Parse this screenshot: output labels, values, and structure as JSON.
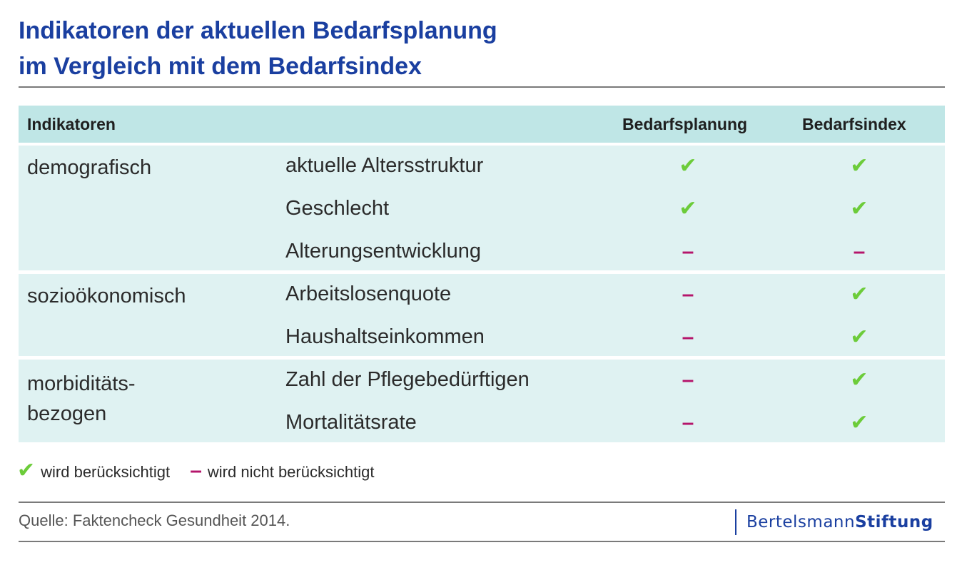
{
  "title": {
    "line1": "Indikatoren der aktuellen Bedarfsplanung",
    "line2": "im Vergleich mit dem Bedarfsindex"
  },
  "table": {
    "headers": {
      "indicators": "Indikatoren",
      "col1": "Bedarfsplanung",
      "col2": "Bedarfsindex"
    },
    "groups": [
      {
        "label_line1": "demografisch",
        "label_line2": "",
        "rows": [
          {
            "label": "aktuelle Altersstruktur",
            "bedarfsplanung": "✔",
            "bedarfsindex": "✔"
          },
          {
            "label": "Geschlecht",
            "bedarfsplanung": "✔",
            "bedarfsindex": "✔"
          },
          {
            "label": "Alterungsentwicklung",
            "bedarfsplanung": "–",
            "bedarfsindex": "–"
          }
        ]
      },
      {
        "label_line1": "sozioökonomisch",
        "label_line2": "",
        "rows": [
          {
            "label": "Arbeitslosenquote",
            "bedarfsplanung": "–",
            "bedarfsindex": "✔"
          },
          {
            "label": "Haushaltseinkommen",
            "bedarfsplanung": "–",
            "bedarfsindex": "✔"
          }
        ]
      },
      {
        "label_line1": "morbiditäts-",
        "label_line2": "bezogen",
        "rows": [
          {
            "label": "Zahl der Pflegebedürftigen",
            "bedarfsplanung": "–",
            "bedarfsindex": "✔"
          },
          {
            "label": "Mortalitätsrate",
            "bedarfsplanung": "–",
            "bedarfsindex": "✔"
          }
        ]
      }
    ]
  },
  "legend": {
    "check_symbol": "✔",
    "check_text": "wird berücksichtigt",
    "dash_symbol": "–",
    "dash_text": "wird nicht berücksichtigt"
  },
  "source": "Quelle: Faktencheck Gesundheit 2014.",
  "logo": {
    "part1": "Bertelsmann",
    "part2": "Stiftung"
  },
  "colors": {
    "title": "#1a3fa0",
    "header_bg": "#bfe6e6",
    "row_bg": "#dff2f2",
    "check": "#6ccc3a",
    "dash": "#b5156b"
  }
}
